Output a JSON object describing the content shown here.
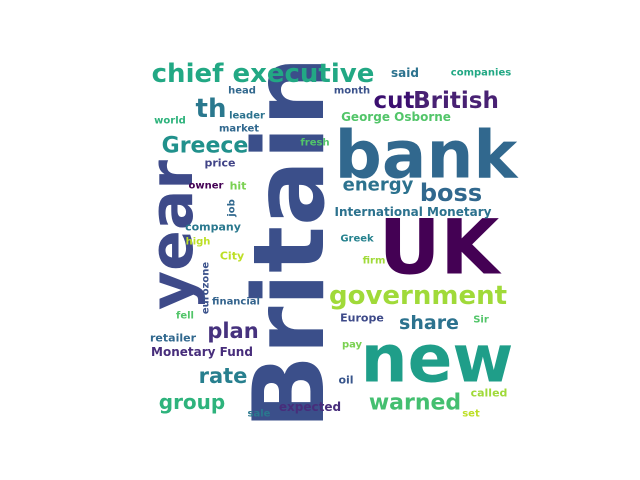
{
  "words": [
    {
      "text": "Britain",
      "color": "#3b4f8a"
    },
    {
      "text": "bank",
      "color": "#31688e"
    },
    {
      "text": "UK",
      "color": "#440154"
    },
    {
      "text": "new",
      "color": "#1f9e89"
    },
    {
      "text": "year",
      "color": "#3e4a89"
    },
    {
      "text": "government",
      "color": "#a0da39"
    },
    {
      "text": "chief executive",
      "color": "#22a884"
    },
    {
      "text": "cut",
      "color": "#3b0f70"
    },
    {
      "text": "British",
      "color": "#482173"
    },
    {
      "text": "th",
      "color": "#2a788e"
    },
    {
      "text": "Greece",
      "color": "#21918c"
    },
    {
      "text": "boss",
      "color": "#31688e"
    },
    {
      "text": "energy",
      "color": "#2c728e"
    },
    {
      "text": "warned",
      "color": "#44bf70"
    },
    {
      "text": "share",
      "color": "#2c728e"
    },
    {
      "text": "plan",
      "color": "#46327e"
    },
    {
      "text": "rate",
      "color": "#277f8e"
    },
    {
      "text": "group",
      "color": "#2eb37c"
    },
    {
      "text": "International Monetary",
      "color": "#2c728e"
    },
    {
      "text": "George Osborne",
      "color": "#52c569"
    },
    {
      "text": "Monetary Fund",
      "color": "#472d7b"
    },
    {
      "text": "said",
      "color": "#2c728e"
    },
    {
      "text": "companies",
      "color": "#22a884"
    },
    {
      "text": "month",
      "color": "#3b528b"
    },
    {
      "text": "head",
      "color": "#31688e"
    },
    {
      "text": "leader",
      "color": "#2c728e"
    },
    {
      "text": "world",
      "color": "#2eb37c"
    },
    {
      "text": "market",
      "color": "#31688e"
    },
    {
      "text": "fresh",
      "color": "#52c569"
    },
    {
      "text": "price",
      "color": "#414487"
    },
    {
      "text": "owner",
      "color": "#440154"
    },
    {
      "text": "hit",
      "color": "#7ad151"
    },
    {
      "text": "job",
      "color": "#31688e"
    },
    {
      "text": "company",
      "color": "#2a788e"
    },
    {
      "text": "high",
      "color": "#bddf26"
    },
    {
      "text": "City",
      "color": "#bddf26"
    },
    {
      "text": "Greek",
      "color": "#26828e"
    },
    {
      "text": "firm",
      "color": "#a0da39"
    },
    {
      "text": "eurozone",
      "color": "#3b528b"
    },
    {
      "text": "financial",
      "color": "#33638d"
    },
    {
      "text": "fell",
      "color": "#52c569"
    },
    {
      "text": "Europe",
      "color": "#3e4a89"
    },
    {
      "text": "Sir",
      "color": "#52c569"
    },
    {
      "text": "retailer",
      "color": "#31688e"
    },
    {
      "text": "pay",
      "color": "#7ad151"
    },
    {
      "text": "oil",
      "color": "#39568c"
    },
    {
      "text": "called",
      "color": "#a0da39"
    },
    {
      "text": "set",
      "color": "#bddf26"
    },
    {
      "text": "sale",
      "color": "#2a788e"
    },
    {
      "text": "expected",
      "color": "#472d7b"
    }
  ]
}
